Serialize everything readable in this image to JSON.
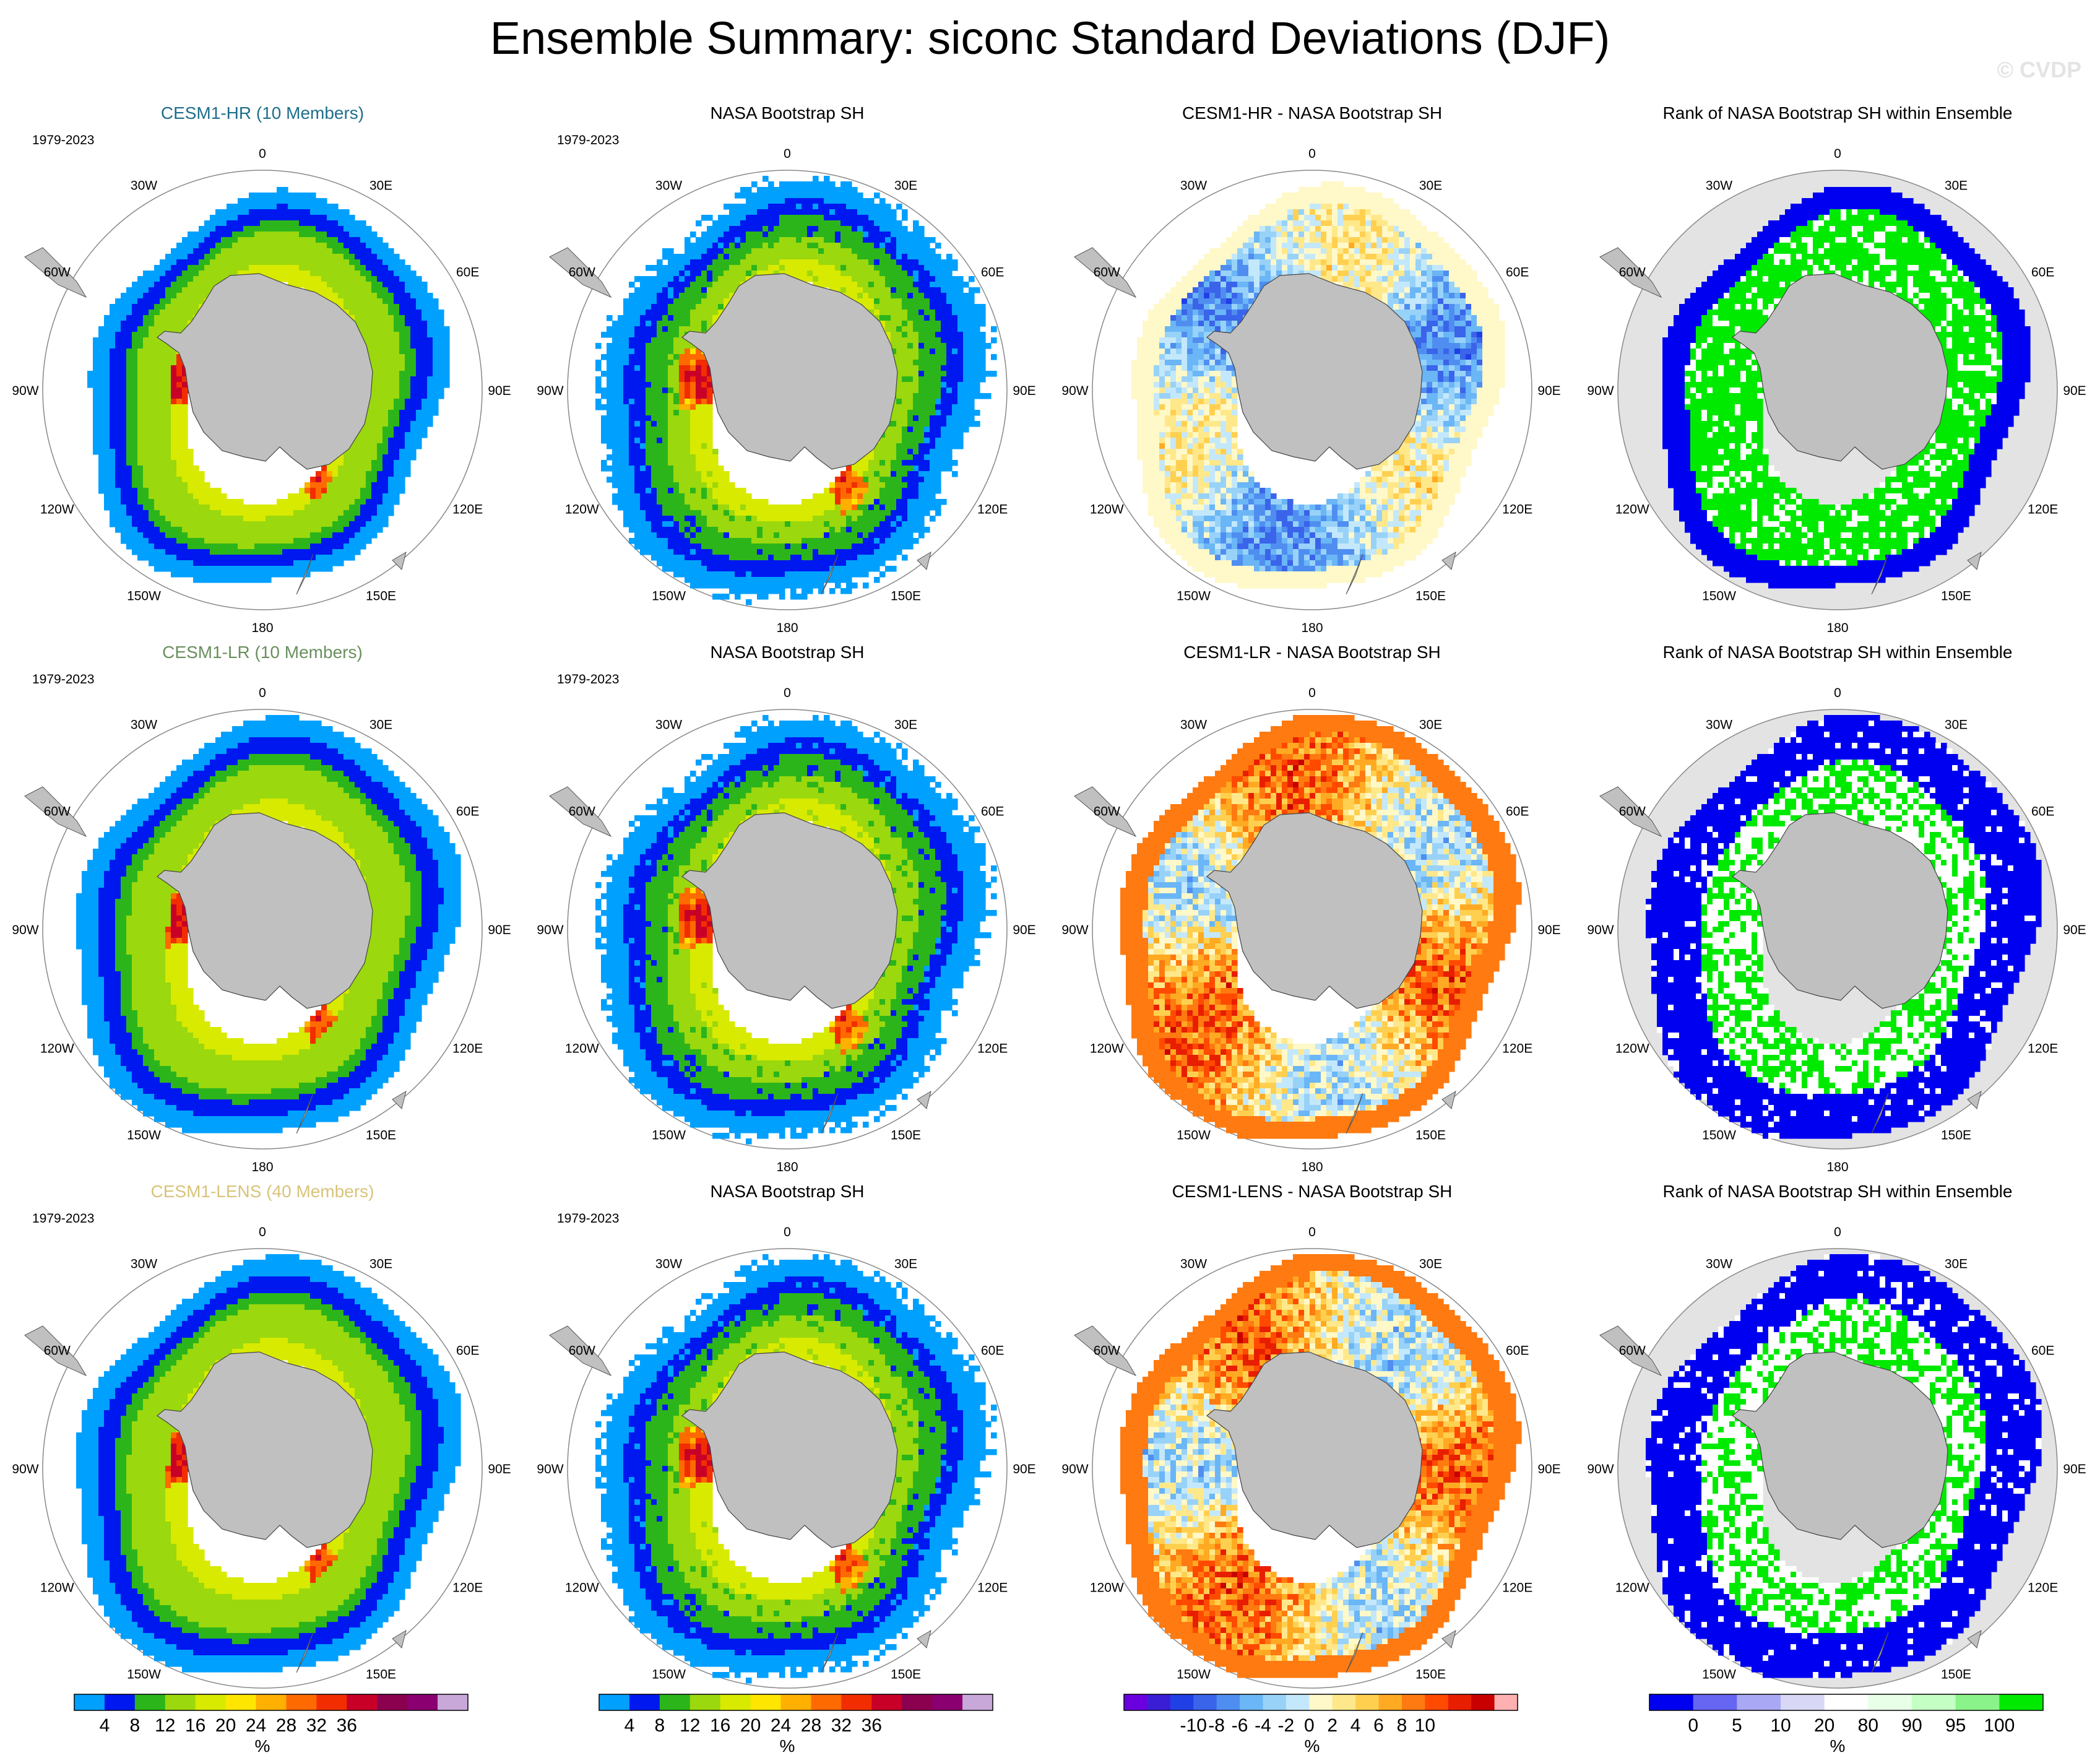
{
  "figure": {
    "title": "Ensemble Summary: siconc Standard Deviations (DJF)",
    "watermark": "© CVDP",
    "period": "1979-2023",
    "lon_labels": [
      "0",
      "30E",
      "60E",
      "90E",
      "120E",
      "150E",
      "180",
      "150W",
      "120W",
      "90W",
      "60W",
      "30W"
    ],
    "colors": {
      "land": "#c0c0c0",
      "rank_background": "#e3e3e3",
      "title_hr": "#1f6f8b",
      "title_lr": "#6a8f5f",
      "title_lens": "#d8c47a"
    }
  },
  "rows": [
    {
      "panels": [
        {
          "title": "CESM1-HR (10 Members)",
          "type": "std",
          "model": "hr",
          "show_period": true
        },
        {
          "title": "NASA Bootstrap SH",
          "type": "std",
          "model": "obs",
          "show_period": true
        },
        {
          "title": "CESM1-HR - NASA Bootstrap SH",
          "type": "diff",
          "model": "hr",
          "show_period": false
        },
        {
          "title": "Rank of NASA Bootstrap SH within Ensemble",
          "type": "rank",
          "model": "hr",
          "show_period": false
        }
      ]
    },
    {
      "panels": [
        {
          "title": "CESM1-LR (10 Members)",
          "type": "std",
          "model": "lr",
          "show_period": true
        },
        {
          "title": "NASA Bootstrap SH",
          "type": "std",
          "model": "obs",
          "show_period": true
        },
        {
          "title": "CESM1-LR - NASA Bootstrap SH",
          "type": "diff",
          "model": "lr",
          "show_period": false
        },
        {
          "title": "Rank of NASA Bootstrap SH within Ensemble",
          "type": "rank",
          "model": "lr",
          "show_period": false
        }
      ]
    },
    {
      "panels": [
        {
          "title": "CESM1-LENS (40 Members)",
          "type": "std",
          "model": "lens",
          "show_period": true
        },
        {
          "title": "NASA Bootstrap SH",
          "type": "std",
          "model": "obs",
          "show_period": true
        },
        {
          "title": "CESM1-LENS - NASA Bootstrap SH",
          "type": "diff",
          "model": "lens",
          "show_period": false
        },
        {
          "title": "Rank of NASA Bootstrap SH within Ensemble",
          "type": "rank",
          "model": "lens",
          "show_period": false
        }
      ]
    }
  ],
  "colorbars": [
    {
      "unit": "%",
      "colors": [
        "#00a0ff",
        "#0018f0",
        "#2bb51b",
        "#9bd80e",
        "#d8ea00",
        "#ffe600",
        "#ffb000",
        "#ff6a00",
        "#f22e00",
        "#c80028",
        "#8c0050",
        "#8a0070",
        "#c8a8d8"
      ],
      "labels": [
        "4",
        "8",
        "12",
        "16",
        "20",
        "24",
        "28",
        "32",
        "36"
      ],
      "label_pos": [
        1,
        2,
        3,
        4,
        5,
        6,
        7,
        8,
        9
      ]
    },
    {
      "unit": "%",
      "colors": [
        "#00a0ff",
        "#0018f0",
        "#2bb51b",
        "#9bd80e",
        "#d8ea00",
        "#ffe600",
        "#ffb000",
        "#ff6a00",
        "#f22e00",
        "#c80028",
        "#8c0050",
        "#8a0070",
        "#c8a8d8"
      ],
      "labels": [
        "4",
        "8",
        "12",
        "16",
        "20",
        "24",
        "28",
        "32",
        "36"
      ],
      "label_pos": [
        1,
        2,
        3,
        4,
        5,
        6,
        7,
        8,
        9
      ]
    },
    {
      "unit": "%",
      "colors": [
        "#6a00e0",
        "#3a1ed6",
        "#2040e6",
        "#3a64ea",
        "#4f8ef0",
        "#6ab6f6",
        "#98d2f8",
        "#c4e8fb",
        "#fff8c8",
        "#ffe88a",
        "#ffd050",
        "#ffaa22",
        "#ff7a10",
        "#ff4a00",
        "#e81e00",
        "#c80000",
        "#ffb0b0"
      ],
      "labels": [
        "-10",
        "-8",
        "-6",
        "-4",
        "-2",
        "0",
        "2",
        "4",
        "6",
        "8",
        "10"
      ],
      "label_pos": [
        3,
        4,
        5,
        6,
        7,
        8,
        9,
        10,
        11,
        12,
        13
      ]
    },
    {
      "unit": "%",
      "colors": [
        "#0000f0",
        "#6666f2",
        "#a8a8f4",
        "#d8d8f6",
        "#ffffff",
        "#e8ffe8",
        "#c4ffc4",
        "#8af48a",
        "#00ea00"
      ],
      "labels": [
        "0",
        "5",
        "10",
        "20",
        "80",
        "90",
        "95",
        "100"
      ],
      "label_pos": [
        1,
        2,
        3,
        4,
        5,
        6,
        7,
        8
      ]
    }
  ]
}
